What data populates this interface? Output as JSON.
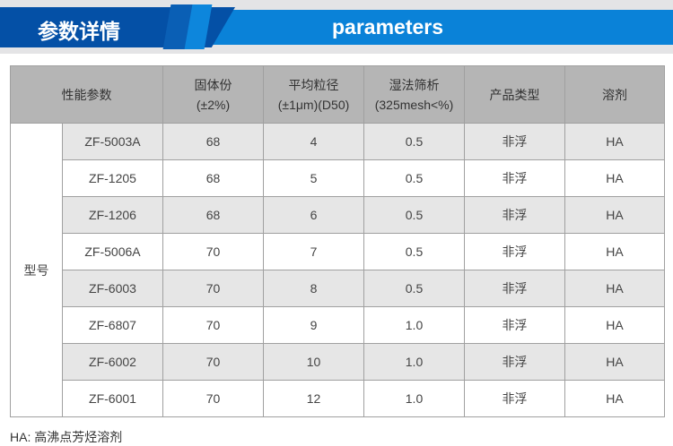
{
  "banner": {
    "title_cn": "参数详情",
    "title_en": "parameters"
  },
  "table": {
    "header": {
      "params": "性能参数",
      "solid": "固体份",
      "solid_sub": "(±2%)",
      "particle": "平均粒径",
      "particle_sub": "(±1μm)(D50)",
      "sieve": "湿法筛析",
      "sieve_sub": "(325mesh<%)",
      "type": "产品类型",
      "solvent": "溶剂"
    },
    "model_label": "型号",
    "rows": [
      {
        "model": "ZF-5003A",
        "solid": "68",
        "particle": "4",
        "sieve": "0.5",
        "type": "非浮",
        "solvent": "HA"
      },
      {
        "model": "ZF-1205",
        "solid": "68",
        "particle": "5",
        "sieve": "0.5",
        "type": "非浮",
        "solvent": "HA"
      },
      {
        "model": "ZF-1206",
        "solid": "68",
        "particle": "6",
        "sieve": "0.5",
        "type": "非浮",
        "solvent": "HA"
      },
      {
        "model": "ZF-5006A",
        "solid": "70",
        "particle": "7",
        "sieve": "0.5",
        "type": "非浮",
        "solvent": "HA"
      },
      {
        "model": "ZF-6003",
        "solid": "70",
        "particle": "8",
        "sieve": "0.5",
        "type": "非浮",
        "solvent": "HA"
      },
      {
        "model": "ZF-6807",
        "solid": "70",
        "particle": "9",
        "sieve": "1.0",
        "type": "非浮",
        "solvent": "HA"
      },
      {
        "model": "ZF-6002",
        "solid": "70",
        "particle": "10",
        "sieve": "1.0",
        "type": "非浮",
        "solvent": "HA"
      },
      {
        "model": "ZF-6001",
        "solid": "70",
        "particle": "12",
        "sieve": "1.0",
        "type": "非浮",
        "solvent": "HA"
      }
    ]
  },
  "note": "HA: 高沸点芳烃溶剂"
}
